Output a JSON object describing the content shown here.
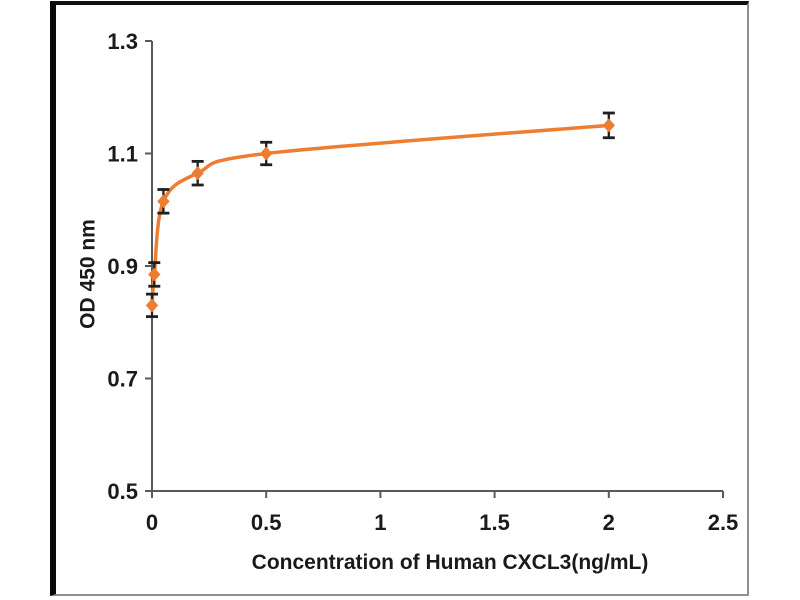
{
  "chart_data": {
    "type": "line",
    "title": "",
    "xlabel": "Concentration of Human CXCL3(ng/mL)",
    "ylabel": "OD 450 nm",
    "points": [
      {
        "x": 0,
        "y": 0.83,
        "err": 0.02
      },
      {
        "x": 0.01,
        "y": 0.885,
        "err": 0.021
      },
      {
        "x": 0.05,
        "y": 1.015,
        "err": 0.021
      },
      {
        "x": 0.2,
        "y": 1.065,
        "err": 0.021
      },
      {
        "x": 0.5,
        "y": 1.1,
        "err": 0.02
      },
      {
        "x": 2,
        "y": 1.15,
        "err": 0.022
      }
    ],
    "xlim": [
      0,
      2.5
    ],
    "ylim": [
      0.5,
      1.3
    ],
    "xtick_values": [
      0,
      0.5,
      1,
      1.5,
      2,
      2.5
    ],
    "xtick_labels": [
      "0",
      "0.5",
      "1",
      "1.5",
      "2",
      "2.5"
    ],
    "ytick_values": [
      0.5,
      0.7,
      0.9,
      1.1,
      1.3
    ],
    "ytick_labels": [
      "0.5",
      "0.7",
      "0.9",
      "1.1",
      "1.3"
    ],
    "grid": false,
    "legend": null,
    "marker": "diamond",
    "colors": {
      "line": "#ED7D31",
      "marker": "#ED7D31",
      "error_bar": "#1f1f1f",
      "axis": "#595959",
      "text": "#1a1a1a"
    }
  }
}
